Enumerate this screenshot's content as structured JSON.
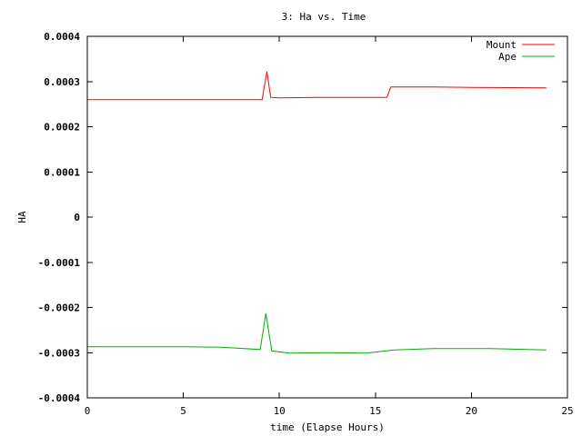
{
  "chart_data": {
    "type": "line",
    "title": "3: Ha vs. Time",
    "xlabel": "time (Elapse Hours)",
    "ylabel": "HA",
    "xlim": [
      0,
      25
    ],
    "ylim": [
      -0.0004,
      0.0004
    ],
    "x_ticks": [
      0,
      5,
      10,
      15,
      20,
      25
    ],
    "x_tick_labels": [
      "0",
      "5",
      "10",
      "15",
      "20",
      "25"
    ],
    "y_ticks": [
      -0.0004,
      -0.0003,
      -0.0002,
      -0.0001,
      0,
      0.0001,
      0.0002,
      0.0003,
      0.0004
    ],
    "y_tick_labels": [
      "-0.0004",
      "-0.0003",
      "-0.0002",
      "-0.0001",
      "0",
      "0.0001",
      "0.0002",
      "0.0003",
      "0.0004"
    ],
    "grid": false,
    "legend_position": "top-right",
    "series": [
      {
        "name": "Mount",
        "color": "#ff0000",
        "points": [
          [
            0,
            0.00026
          ],
          [
            5,
            0.00026
          ],
          [
            9.1,
            0.00026
          ],
          [
            9.35,
            0.000322
          ],
          [
            9.55,
            0.000265
          ],
          [
            10.0,
            0.000264
          ],
          [
            12.0,
            0.000265
          ],
          [
            15.6,
            0.000265
          ],
          [
            15.8,
            0.000288
          ],
          [
            18.0,
            0.000288
          ],
          [
            20.0,
            0.000287
          ],
          [
            23.9,
            0.000286
          ]
        ]
      },
      {
        "name": "Ape",
        "color": "#00b000",
        "points": [
          [
            0,
            -0.000287
          ],
          [
            5,
            -0.000287
          ],
          [
            7.0,
            -0.000288
          ],
          [
            9.0,
            -0.000293
          ],
          [
            9.3,
            -0.000213
          ],
          [
            9.6,
            -0.000296
          ],
          [
            10.5,
            -0.000301
          ],
          [
            12.5,
            -0.0003
          ],
          [
            14.5,
            -0.000301
          ],
          [
            16.0,
            -0.000294
          ],
          [
            18.0,
            -0.000291
          ],
          [
            21.0,
            -0.000291
          ],
          [
            23.9,
            -0.000294
          ]
        ]
      }
    ]
  }
}
